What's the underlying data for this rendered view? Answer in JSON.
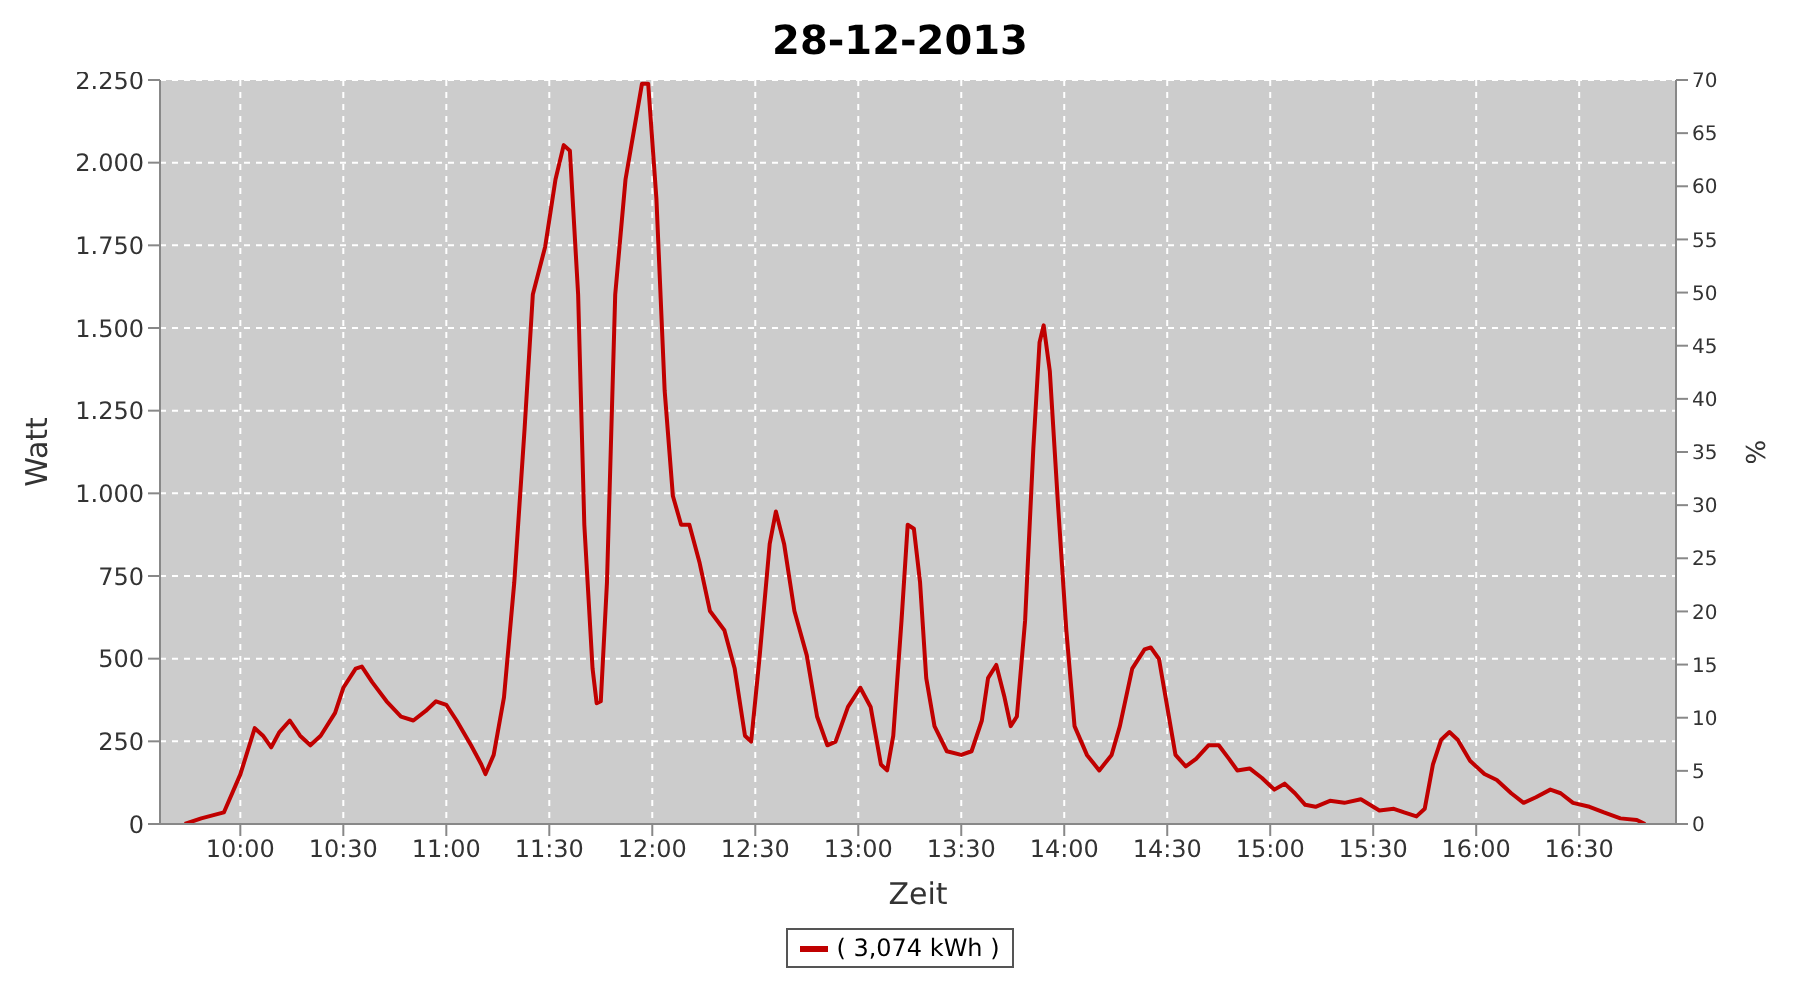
{
  "chart_data": {
    "type": "line",
    "title": "28-12-2013",
    "xlabel": "Zeit",
    "ylabel": "Watt",
    "y2label": "%",
    "x": [
      9.73,
      9.81,
      9.92,
      10.0,
      10.07,
      10.11,
      10.15,
      10.19,
      10.24,
      10.29,
      10.34,
      10.39,
      10.46,
      10.5,
      10.56,
      10.59,
      10.64,
      10.71,
      10.78,
      10.84,
      10.9,
      10.95,
      11.0,
      11.05,
      11.12,
      11.17,
      11.19,
      11.23,
      11.28,
      11.33,
      11.38,
      11.42,
      11.48,
      11.53,
      11.57,
      11.6,
      11.64,
      11.67,
      11.71,
      11.73,
      11.75,
      11.78,
      11.82,
      11.87,
      11.91,
      11.95,
      11.98,
      12.02,
      12.06,
      12.1,
      12.14,
      12.18,
      12.23,
      12.28,
      12.35,
      12.4,
      12.45,
      12.48,
      12.52,
      12.57,
      12.6,
      12.64,
      12.69,
      12.75,
      12.8,
      12.85,
      12.89,
      12.95,
      13.01,
      13.06,
      13.11,
      13.14,
      13.17,
      13.21,
      13.24,
      13.27,
      13.3,
      13.33,
      13.37,
      13.43,
      13.5,
      13.55,
      13.6,
      13.63,
      13.67,
      13.71,
      13.74,
      13.77,
      13.81,
      13.85,
      13.88,
      13.9,
      13.93,
      13.97,
      14.01,
      14.05,
      14.11,
      14.17,
      14.23,
      14.27,
      14.33,
      14.39,
      14.42,
      14.46,
      14.5,
      14.54,
      14.59,
      14.64,
      14.7,
      14.75,
      14.8,
      14.84,
      14.9,
      14.96,
      15.02,
      15.07,
      15.12,
      15.17,
      15.22,
      15.29,
      15.36,
      15.44,
      15.53,
      15.6,
      15.65,
      15.71,
      15.75,
      15.79,
      15.83,
      15.87,
      15.91,
      15.97,
      16.04,
      16.1,
      16.17,
      16.23,
      16.29,
      16.36,
      16.41,
      16.47,
      16.55,
      16.62,
      16.7,
      16.78,
      16.82
    ],
    "series": [
      {
        "name": "( 3,074 kWh )",
        "color": "#c00000",
        "values": [
          0,
          17,
          35,
          150,
          290,
          267,
          232,
          278,
          313,
          267,
          238,
          267,
          336,
          412,
          470,
          476,
          429,
          371,
          325,
          313,
          342,
          371,
          360,
          313,
          238,
          180,
          151,
          209,
          383,
          731,
          1195,
          1601,
          1746,
          1949,
          2053,
          2036,
          1601,
          905,
          470,
          365,
          371,
          731,
          1601,
          1949,
          2094,
          2239,
          2239,
          1891,
          1311,
          992,
          905,
          905,
          789,
          644,
          586,
          470,
          267,
          249,
          499,
          847,
          945,
          847,
          644,
          510,
          325,
          238,
          249,
          354,
          412,
          354,
          180,
          162,
          267,
          615,
          905,
          893,
          731,
          441,
          296,
          220,
          209,
          220,
          313,
          441,
          481,
          383,
          296,
          325,
          615,
          1137,
          1456,
          1508,
          1369,
          963,
          586,
          296,
          209,
          162,
          209,
          296,
          470,
          528,
          534,
          499,
          354,
          209,
          174,
          197,
          238,
          238,
          197,
          162,
          168,
          139,
          104,
          122,
          93,
          58,
          52,
          70,
          64,
          75,
          41,
          46,
          35,
          23,
          46,
          180,
          255,
          278,
          255,
          191,
          151,
          133,
          93,
          64,
          81,
          104,
          93,
          64,
          52,
          35,
          17,
          12,
          0
        ]
      }
    ],
    "xlim": [
      9.61,
      16.97
    ],
    "xticks": [
      {
        "value": 10,
        "label": "10:00"
      },
      {
        "value": 10.5,
        "label": "10:30"
      },
      {
        "value": 11,
        "label": "11:00"
      },
      {
        "value": 11.5,
        "label": "11:30"
      },
      {
        "value": 12,
        "label": "12:00"
      },
      {
        "value": 12.5,
        "label": "12:30"
      },
      {
        "value": 13,
        "label": "13:00"
      },
      {
        "value": 13.5,
        "label": "13:30"
      },
      {
        "value": 14,
        "label": "14:00"
      },
      {
        "value": 14.5,
        "label": "14:30"
      },
      {
        "value": 15,
        "label": "15:00"
      },
      {
        "value": 15.5,
        "label": "15:30"
      },
      {
        "value": 16,
        "label": "16:00"
      },
      {
        "value": 16.5,
        "label": "16:30"
      }
    ],
    "ylim": [
      0,
      2250
    ],
    "yticks": [
      0,
      250,
      500,
      750,
      {
        "value": 1000,
        "label": "1.000"
      },
      {
        "value": 1250,
        "label": "1.250"
      },
      {
        "value": 1500,
        "label": "1.500"
      },
      {
        "value": 1750,
        "label": "1.750"
      },
      {
        "value": 2000,
        "label": "2.000"
      },
      {
        "value": 2250,
        "label": "2.250"
      }
    ],
    "y2lim": [
      0,
      70
    ],
    "y2ticks": [
      0,
      5,
      10,
      15,
      20,
      25,
      30,
      35,
      40,
      45,
      50,
      55,
      60,
      65,
      70
    ],
    "grid": true,
    "legend": "bottom",
    "marker": "none",
    "line_style": "solid"
  }
}
